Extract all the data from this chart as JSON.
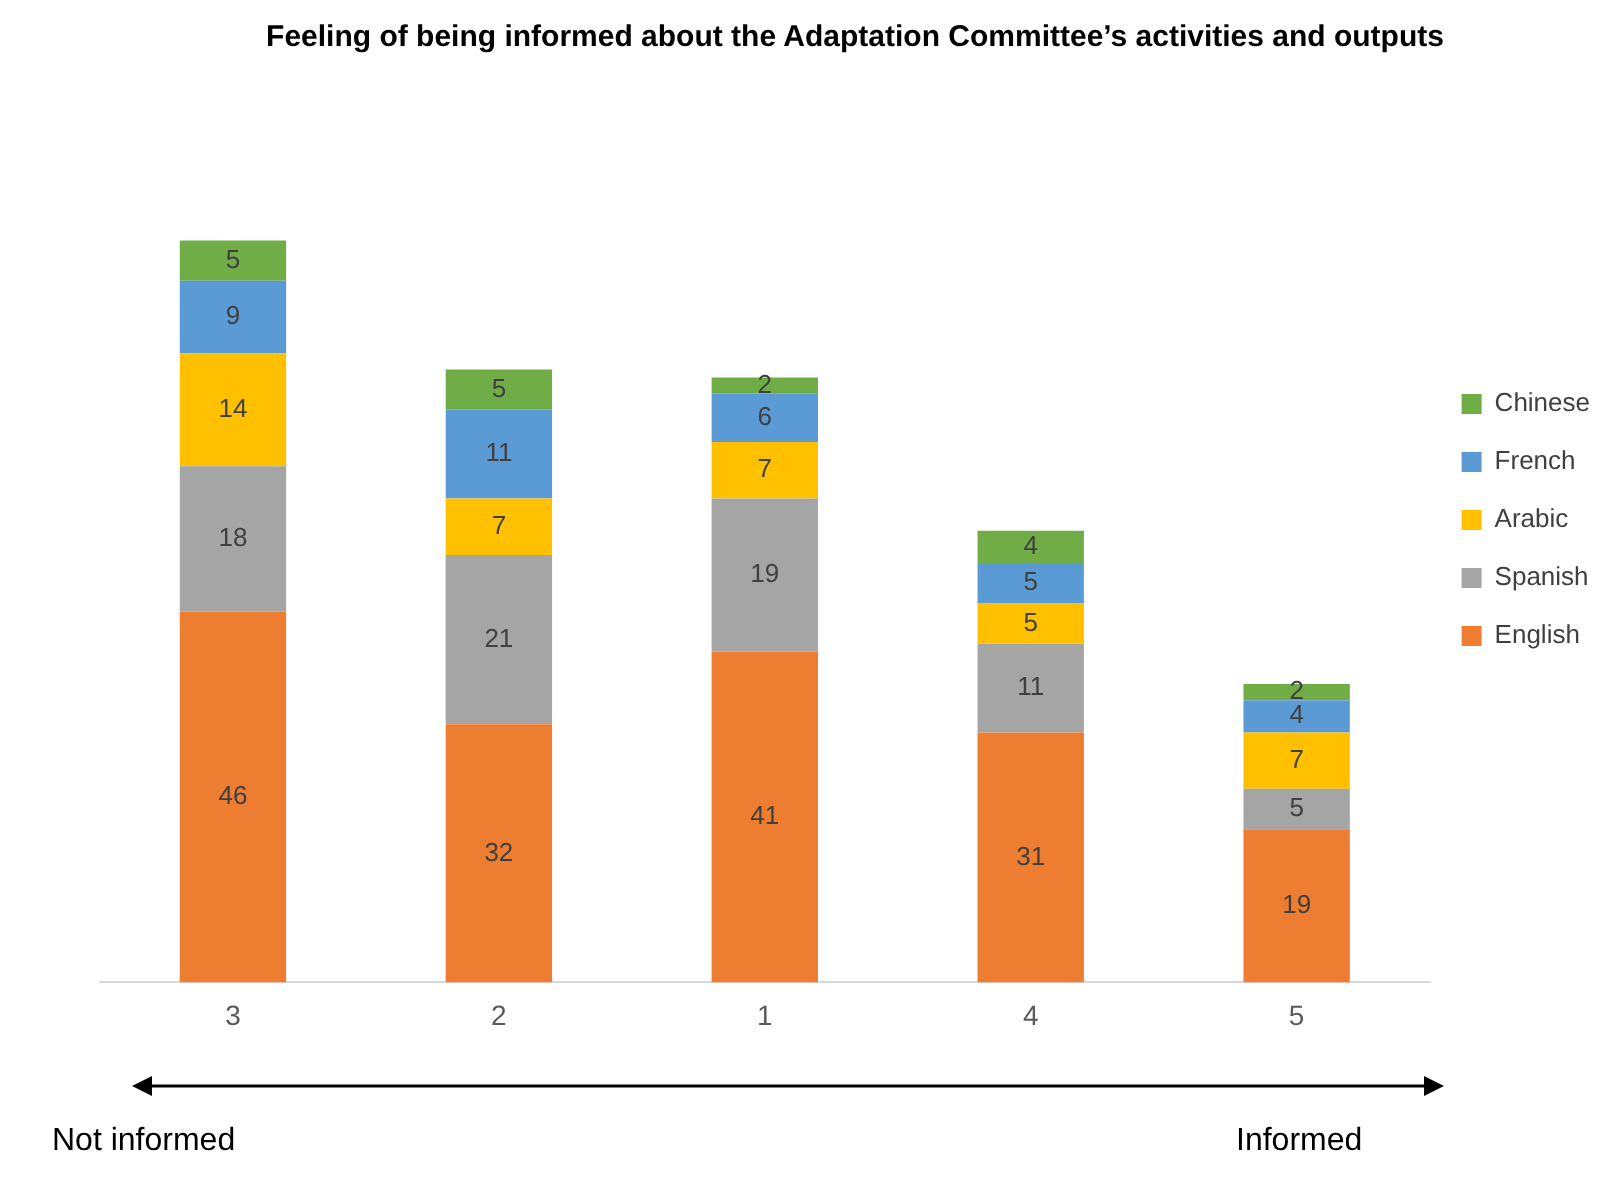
{
  "chart_data": {
    "type": "bar",
    "stacked": true,
    "title": "Feeling of being informed about the Adaptation Committee’s activities and outputs",
    "categories": [
      "3",
      "2",
      "1",
      "4",
      "5"
    ],
    "series": [
      {
        "name": "English",
        "color": "#ed7d31",
        "values": [
          46,
          32,
          41,
          31,
          19
        ]
      },
      {
        "name": "Spanish",
        "color": "#a5a5a5",
        "values": [
          18,
          21,
          19,
          11,
          5
        ]
      },
      {
        "name": "Arabic",
        "color": "#ffc000",
        "values": [
          14,
          7,
          7,
          5,
          7
        ]
      },
      {
        "name": "French",
        "color": "#5b9bd5",
        "values": [
          9,
          11,
          6,
          5,
          4
        ]
      },
      {
        "name": "Chinese",
        "color": "#70ad47",
        "values": [
          5,
          5,
          2,
          4,
          2
        ]
      }
    ],
    "data_labels": true,
    "legend": "right",
    "grid": false,
    "annotations": [
      "Not informed",
      "Informed"
    ]
  }
}
